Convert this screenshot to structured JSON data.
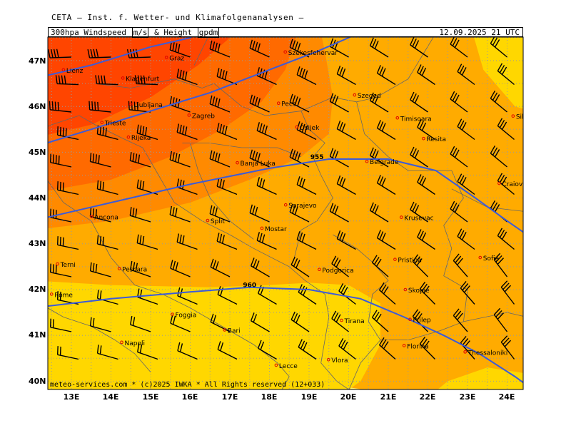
{
  "header": {
    "institute": "CETA — Inst. f. Wetter- und Klimafolgenanalysen —",
    "title_parts": [
      "300hpa_Windspeed",
      "m/s",
      "_&_Height_",
      "gpdm"
    ],
    "datetime": "12.09.2025 21 UTC"
  },
  "axes": {
    "lat_labels": [
      "47N",
      "46N",
      "45N",
      "44N",
      "43N",
      "42N",
      "41N",
      "40N"
    ],
    "lon_labels": [
      "13E",
      "14E",
      "15E",
      "16E",
      "17E",
      "18E",
      "19E",
      "20E",
      "21E",
      "22E",
      "23E",
      "24E"
    ]
  },
  "map_data": {
    "region": "Balkans / Adriatic",
    "lon_range": [
      12.5,
      24.5
    ],
    "lat_range": [
      39.8,
      47.5
    ],
    "colors": {
      "speed_low": "#fff176",
      "speed_mid_low": "#ffd700",
      "speed_mid": "#ffab00",
      "speed_high": "#ff8a00",
      "speed_very_high": "#ff6a00",
      "speed_max": "#ff4500",
      "height_contour": "#3b5bdb",
      "city_marker": "#e00000",
      "gridline": "#9a9a9a",
      "border": "#666666"
    },
    "height_contours": [
      {
        "label": "955",
        "label_lon": 19.2,
        "label_lat": 44.9
      },
      {
        "label": "960",
        "label_lon": 17.5,
        "label_lat": 42.1
      }
    ],
    "cities": [
      {
        "name": "Lienz",
        "lon": 12.8,
        "lat": 46.8
      },
      {
        "name": "Graz",
        "lon": 15.4,
        "lat": 47.07
      },
      {
        "name": "Szekesfehervar",
        "lon": 18.4,
        "lat": 47.19
      },
      {
        "name": "Klagenfurt",
        "lon": 14.3,
        "lat": 46.62
      },
      {
        "name": "Szeged",
        "lon": 20.15,
        "lat": 46.25
      },
      {
        "name": "Ljubljana",
        "lon": 14.5,
        "lat": 46.05
      },
      {
        "name": "Pecs",
        "lon": 18.23,
        "lat": 46.07
      },
      {
        "name": "Zagreb",
        "lon": 15.97,
        "lat": 45.81
      },
      {
        "name": "Timisoara",
        "lon": 21.23,
        "lat": 45.75
      },
      {
        "name": "Sibiu",
        "lon": 24.15,
        "lat": 45.79
      },
      {
        "name": "Trieste",
        "lon": 13.77,
        "lat": 45.65
      },
      {
        "name": "Osijek",
        "lon": 18.69,
        "lat": 45.55
      },
      {
        "name": "Rijeka",
        "lon": 14.44,
        "lat": 45.33
      },
      {
        "name": "Resita",
        "lon": 21.89,
        "lat": 45.3
      },
      {
        "name": "Banja Luka",
        "lon": 17.19,
        "lat": 44.77
      },
      {
        "name": "Belgrade",
        "lon": 20.46,
        "lat": 44.8
      },
      {
        "name": "Craiova",
        "lon": 23.8,
        "lat": 44.32
      },
      {
        "name": "Sarajevo",
        "lon": 18.41,
        "lat": 43.85
      },
      {
        "name": "Ancona",
        "lon": 13.51,
        "lat": 43.6
      },
      {
        "name": "Split",
        "lon": 16.44,
        "lat": 43.51
      },
      {
        "name": "Mostar",
        "lon": 17.81,
        "lat": 43.34
      },
      {
        "name": "Terni",
        "lon": 12.65,
        "lat": 42.56
      },
      {
        "name": "Pescara",
        "lon": 14.21,
        "lat": 42.46
      },
      {
        "name": "Pristina",
        "lon": 21.17,
        "lat": 42.66
      },
      {
        "name": "Sofia",
        "lon": 23.32,
        "lat": 42.7
      },
      {
        "name": "Krusevac",
        "lon": 21.33,
        "lat": 43.58
      },
      {
        "name": "Podgorica",
        "lon": 19.26,
        "lat": 42.44
      },
      {
        "name": "Rome",
        "lon": 12.5,
        "lat": 41.9
      },
      {
        "name": "Skopje",
        "lon": 21.43,
        "lat": 42.0
      },
      {
        "name": "Foggia",
        "lon": 15.55,
        "lat": 41.46
      },
      {
        "name": "Tirana",
        "lon": 19.82,
        "lat": 41.33
      },
      {
        "name": "Prilep",
        "lon": 21.55,
        "lat": 41.35
      },
      {
        "name": "Bari",
        "lon": 16.87,
        "lat": 41.12
      },
      {
        "name": "Napoli",
        "lon": 14.27,
        "lat": 40.85
      },
      {
        "name": "Florina",
        "lon": 21.4,
        "lat": 40.78
      },
      {
        "name": "Thessaloniki",
        "lon": 22.94,
        "lat": 40.64
      },
      {
        "name": "Vlora",
        "lon": 19.49,
        "lat": 40.47
      },
      {
        "name": "Lecce",
        "lon": 18.17,
        "lat": 40.35
      }
    ]
  },
  "footer": {
    "text": "meteo-services.com * (c)2025 IWKA * All Rights reserved (12+033)"
  }
}
